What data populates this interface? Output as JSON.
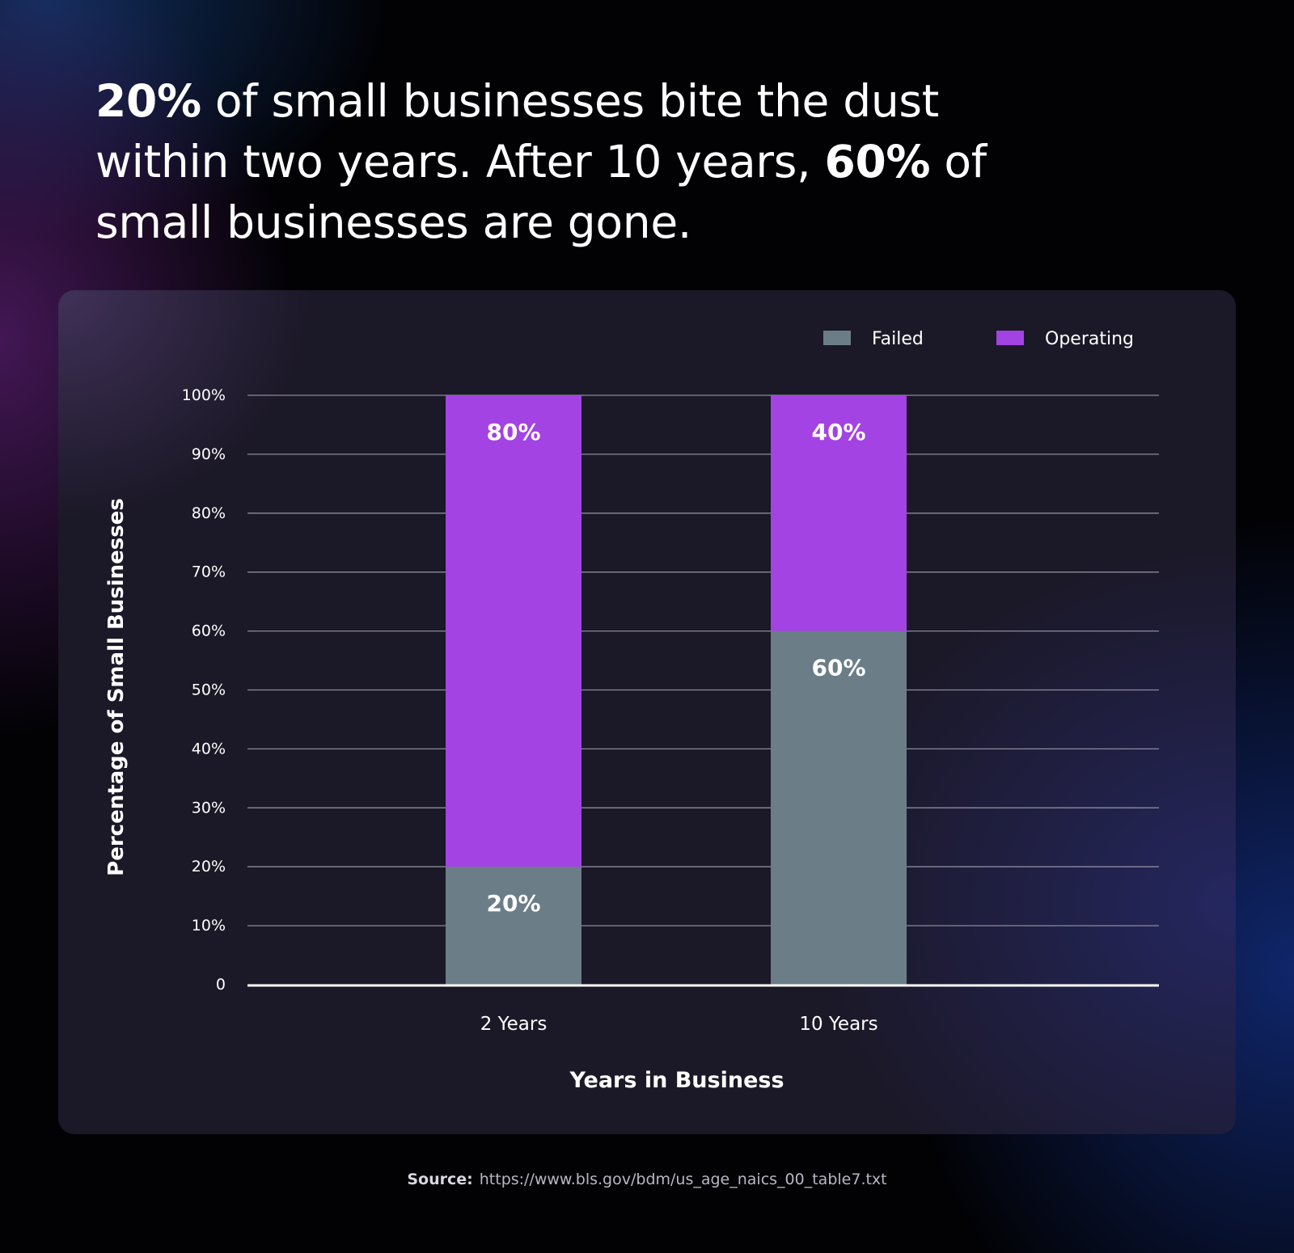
{
  "headline": {
    "b1": "20%",
    "t1": " of small businesses bite the dust within two years. After 10 years, ",
    "b2": "60%",
    "t2": " of small businesses are gone."
  },
  "source": {
    "label": "Source:",
    "url": "https://www.bls.gov/bdm/us_age_naics_00_table7.txt"
  },
  "colors": {
    "failed": "#6b7d87",
    "operating": "#a343e3"
  },
  "chart_data": {
    "type": "bar",
    "stacked": true,
    "categories": [
      "2 Years",
      "10 Years"
    ],
    "series": [
      {
        "name": "Failed",
        "values": [
          20,
          60
        ],
        "labels": [
          "20%",
          "60%"
        ]
      },
      {
        "name": "Operating",
        "values": [
          80,
          40
        ],
        "labels": [
          "80%",
          "40%"
        ]
      }
    ],
    "xlabel": "Years in Business",
    "ylabel": "Percentage of Small Businesses",
    "ylim": [
      0,
      100
    ],
    "yticks": [
      "0",
      "10%",
      "20%",
      "30%",
      "40%",
      "50%",
      "60%",
      "70%",
      "80%",
      "90%",
      "100%"
    ],
    "grid": true,
    "legend": "top-right"
  }
}
